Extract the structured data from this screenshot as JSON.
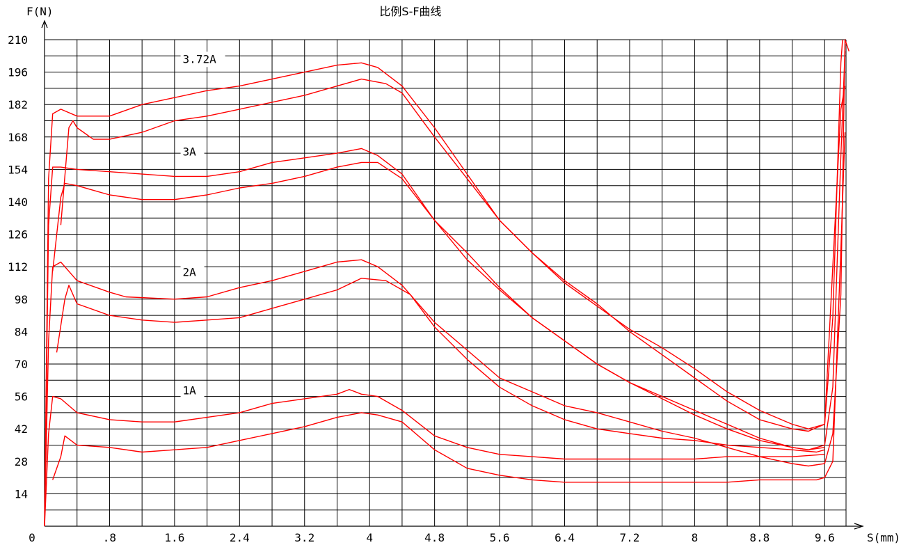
{
  "chart_data": {
    "type": "line",
    "title": "比例S-F曲线",
    "ylabel": "F(N)",
    "xlabel": "S(mm)",
    "origin_label": "0",
    "xlim": [
      0,
      10.0
    ],
    "ylim": [
      0,
      210
    ],
    "x_ticks": [
      {
        "v": 0.8,
        "label": ".8"
      },
      {
        "v": 1.6,
        "label": "1.6"
      },
      {
        "v": 2.4,
        "label": "2.4"
      },
      {
        "v": 3.2,
        "label": "3.2"
      },
      {
        "v": 4.0,
        "label": "4"
      },
      {
        "v": 4.8,
        "label": "4.8"
      },
      {
        "v": 5.6,
        "label": "5.6"
      },
      {
        "v": 6.4,
        "label": "6.4"
      },
      {
        "v": 7.2,
        "label": "7.2"
      },
      {
        "v": 8.0,
        "label": "8"
      },
      {
        "v": 8.8,
        "label": "8.8"
      },
      {
        "v": 9.6,
        "label": "9.6"
      }
    ],
    "y_ticks": [
      14,
      28,
      42,
      56,
      70,
      84,
      98,
      112,
      126,
      140,
      154,
      168,
      182,
      196,
      210
    ],
    "grid": true,
    "line_color": "#ff0000",
    "annotations": [
      {
        "text": "3.72A",
        "x": 1.7,
        "y": 200
      },
      {
        "text": "3A",
        "x": 1.7,
        "y": 160
      },
      {
        "text": "2A",
        "x": 1.7,
        "y": 108
      },
      {
        "text": "1A",
        "x": 1.7,
        "y": 57
      }
    ],
    "series": [
      {
        "values": [
          [
            0.0,
            0
          ],
          [
            0.05,
            80
          ],
          [
            0.1,
            112
          ],
          [
            0.2,
            114
          ],
          [
            0.4,
            106
          ],
          [
            0.8,
            101
          ],
          [
            1.0,
            99
          ],
          [
            1.6,
            98
          ],
          [
            2.0,
            99
          ],
          [
            2.4,
            103
          ],
          [
            2.8,
            106
          ],
          [
            3.2,
            110
          ],
          [
            3.6,
            114
          ],
          [
            3.9,
            115
          ],
          [
            4.1,
            112
          ],
          [
            4.4,
            104
          ],
          [
            4.8,
            88
          ],
          [
            5.2,
            76
          ],
          [
            5.6,
            64
          ],
          [
            6.0,
            58
          ],
          [
            6.4,
            52
          ],
          [
            6.8,
            49
          ],
          [
            7.2,
            45
          ],
          [
            7.6,
            41
          ],
          [
            8.0,
            38
          ],
          [
            8.4,
            34
          ],
          [
            8.8,
            30
          ],
          [
            9.2,
            27
          ],
          [
            9.4,
            26
          ],
          [
            9.6,
            27
          ],
          [
            9.7,
            40
          ],
          [
            9.8,
            100
          ],
          [
            9.85,
            210
          ],
          [
            9.9,
            205
          ]
        ]
      },
      {
        "values": [
          [
            0.15,
            75
          ],
          [
            0.25,
            98
          ],
          [
            0.3,
            104
          ],
          [
            0.4,
            96
          ],
          [
            0.8,
            91
          ],
          [
            1.2,
            89
          ],
          [
            1.6,
            88
          ],
          [
            2.0,
            89
          ],
          [
            2.4,
            90
          ],
          [
            2.8,
            94
          ],
          [
            3.2,
            98
          ],
          [
            3.6,
            102
          ],
          [
            3.9,
            107
          ],
          [
            4.2,
            106
          ],
          [
            4.5,
            100
          ],
          [
            4.8,
            86
          ],
          [
            5.2,
            72
          ],
          [
            5.6,
            60
          ],
          [
            6.0,
            52
          ],
          [
            6.4,
            46
          ],
          [
            6.8,
            42
          ],
          [
            7.2,
            40
          ],
          [
            7.6,
            38
          ],
          [
            8.0,
            37
          ],
          [
            8.4,
            35
          ],
          [
            8.8,
            34
          ],
          [
            9.2,
            33
          ],
          [
            9.5,
            32
          ],
          [
            9.6,
            33
          ]
        ]
      },
      {
        "values": [
          [
            0.0,
            0
          ],
          [
            0.05,
            130
          ],
          [
            0.1,
            155
          ],
          [
            0.2,
            155
          ],
          [
            0.4,
            154
          ],
          [
            0.8,
            153
          ],
          [
            1.2,
            152
          ],
          [
            1.6,
            151
          ],
          [
            2.0,
            151
          ],
          [
            2.4,
            153
          ],
          [
            2.8,
            157
          ],
          [
            3.2,
            159
          ],
          [
            3.6,
            161
          ],
          [
            3.9,
            163
          ],
          [
            4.1,
            160
          ],
          [
            4.4,
            152
          ],
          [
            4.8,
            132
          ],
          [
            5.2,
            118
          ],
          [
            5.6,
            103
          ],
          [
            6.0,
            90
          ],
          [
            6.4,
            80
          ],
          [
            6.8,
            70
          ],
          [
            7.2,
            62
          ],
          [
            7.6,
            56
          ],
          [
            8.0,
            50
          ],
          [
            8.4,
            44
          ],
          [
            8.8,
            38
          ],
          [
            9.2,
            34
          ],
          [
            9.4,
            33
          ],
          [
            9.6,
            35
          ],
          [
            9.7,
            60
          ],
          [
            9.8,
            160
          ],
          [
            9.85,
            205
          ]
        ]
      },
      {
        "values": [
          [
            0.1,
            110
          ],
          [
            0.2,
            142
          ],
          [
            0.25,
            148
          ],
          [
            0.4,
            147
          ],
          [
            0.8,
            143
          ],
          [
            1.2,
            141
          ],
          [
            1.6,
            141
          ],
          [
            2.0,
            143
          ],
          [
            2.4,
            146
          ],
          [
            2.8,
            148
          ],
          [
            3.2,
            151
          ],
          [
            3.6,
            155
          ],
          [
            3.9,
            157
          ],
          [
            4.1,
            157
          ],
          [
            4.4,
            150
          ],
          [
            4.8,
            132
          ],
          [
            5.2,
            115
          ],
          [
            5.6,
            102
          ],
          [
            6.0,
            90
          ],
          [
            6.4,
            80
          ],
          [
            6.8,
            70
          ],
          [
            7.2,
            62
          ],
          [
            7.6,
            55
          ],
          [
            8.0,
            48
          ],
          [
            8.4,
            42
          ],
          [
            8.8,
            37
          ],
          [
            9.2,
            34
          ],
          [
            9.4,
            33
          ],
          [
            9.6,
            34
          ]
        ]
      },
      {
        "values": [
          [
            0.0,
            0
          ],
          [
            0.05,
            150
          ],
          [
            0.1,
            178
          ],
          [
            0.2,
            180
          ],
          [
            0.4,
            177
          ],
          [
            0.8,
            177
          ],
          [
            1.2,
            182
          ],
          [
            1.6,
            185
          ],
          [
            2.0,
            188
          ],
          [
            2.4,
            190
          ],
          [
            2.8,
            193
          ],
          [
            3.2,
            196
          ],
          [
            3.6,
            199
          ],
          [
            3.9,
            200
          ],
          [
            4.1,
            198
          ],
          [
            4.4,
            190
          ],
          [
            4.8,
            172
          ],
          [
            5.2,
            152
          ],
          [
            5.6,
            132
          ],
          [
            6.0,
            118
          ],
          [
            6.4,
            106
          ],
          [
            6.8,
            96
          ],
          [
            7.2,
            84
          ],
          [
            7.6,
            74
          ],
          [
            8.0,
            64
          ],
          [
            8.4,
            54
          ],
          [
            8.8,
            46
          ],
          [
            9.2,
            42
          ],
          [
            9.4,
            41
          ],
          [
            9.6,
            44
          ],
          [
            9.7,
            90
          ],
          [
            9.8,
            200
          ],
          [
            9.82,
            210
          ]
        ]
      },
      {
        "values": [
          [
            0.2,
            130
          ],
          [
            0.3,
            172
          ],
          [
            0.35,
            175
          ],
          [
            0.4,
            172
          ],
          [
            0.6,
            167
          ],
          [
            0.8,
            167
          ],
          [
            1.2,
            170
          ],
          [
            1.6,
            175
          ],
          [
            2.0,
            177
          ],
          [
            2.4,
            180
          ],
          [
            2.8,
            183
          ],
          [
            3.2,
            186
          ],
          [
            3.6,
            190
          ],
          [
            3.9,
            193
          ],
          [
            4.2,
            191
          ],
          [
            4.4,
            187
          ],
          [
            4.8,
            168
          ],
          [
            5.2,
            150
          ],
          [
            5.6,
            132
          ],
          [
            6.0,
            118
          ],
          [
            6.4,
            105
          ],
          [
            6.8,
            95
          ],
          [
            7.2,
            85
          ],
          [
            7.6,
            77
          ],
          [
            8.0,
            68
          ],
          [
            8.4,
            58
          ],
          [
            8.8,
            50
          ],
          [
            9.2,
            44
          ],
          [
            9.4,
            42
          ],
          [
            9.6,
            44
          ],
          [
            9.8,
            180
          ],
          [
            9.85,
            190
          ]
        ]
      },
      {
        "values": [
          [
            0.0,
            0
          ],
          [
            0.05,
            40
          ],
          [
            0.1,
            56
          ],
          [
            0.2,
            55
          ],
          [
            0.4,
            49
          ],
          [
            0.8,
            46
          ],
          [
            1.2,
            45
          ],
          [
            1.6,
            45
          ],
          [
            2.0,
            47
          ],
          [
            2.4,
            49
          ],
          [
            2.8,
            53
          ],
          [
            3.2,
            55
          ],
          [
            3.6,
            57
          ],
          [
            3.75,
            59
          ],
          [
            3.9,
            57
          ],
          [
            4.1,
            56
          ],
          [
            4.4,
            50
          ],
          [
            4.8,
            39
          ],
          [
            5.2,
            34
          ],
          [
            5.6,
            31
          ],
          [
            6.0,
            30
          ],
          [
            6.4,
            29
          ],
          [
            6.8,
            29
          ],
          [
            7.2,
            29
          ],
          [
            7.6,
            29
          ],
          [
            8.0,
            29
          ],
          [
            8.4,
            30
          ],
          [
            8.8,
            30
          ],
          [
            9.2,
            30
          ],
          [
            9.6,
            31
          ]
        ]
      },
      {
        "values": [
          [
            0.1,
            20
          ],
          [
            0.2,
            30
          ],
          [
            0.25,
            39
          ],
          [
            0.4,
            35
          ],
          [
            0.8,
            34
          ],
          [
            1.2,
            32
          ],
          [
            1.6,
            33
          ],
          [
            2.0,
            34
          ],
          [
            2.4,
            37
          ],
          [
            2.8,
            40
          ],
          [
            3.2,
            43
          ],
          [
            3.6,
            47
          ],
          [
            3.9,
            49
          ],
          [
            4.1,
            48
          ],
          [
            4.4,
            45
          ],
          [
            4.8,
            33
          ],
          [
            5.2,
            25
          ],
          [
            5.6,
            22
          ],
          [
            6.0,
            20
          ],
          [
            6.4,
            19
          ],
          [
            6.8,
            19
          ],
          [
            7.2,
            19
          ],
          [
            7.6,
            19
          ],
          [
            8.0,
            19
          ],
          [
            8.4,
            19
          ],
          [
            8.8,
            20
          ],
          [
            9.2,
            20
          ],
          [
            9.5,
            20
          ],
          [
            9.6,
            21
          ],
          [
            9.7,
            28
          ],
          [
            9.8,
            120
          ],
          [
            9.85,
            170
          ]
        ]
      }
    ]
  }
}
